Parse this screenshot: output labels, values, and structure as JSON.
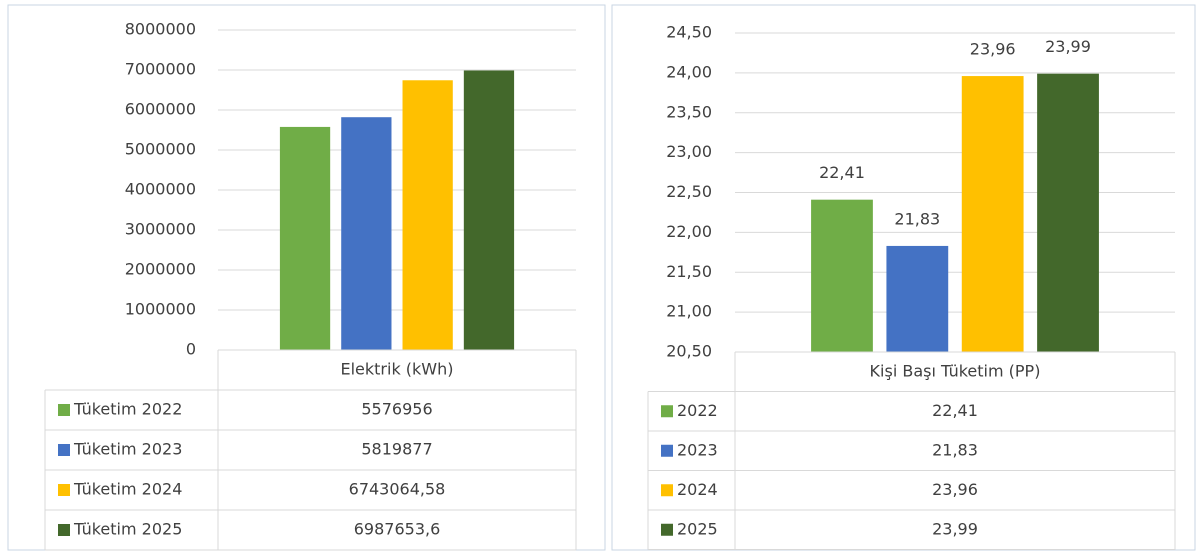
{
  "chart_data": [
    {
      "type": "bar",
      "categories": [
        "Elektrik (kWh)"
      ],
      "series": [
        {
          "name": "Tüketim 2022",
          "color": "#70ad47",
          "values": [
            5576956
          ],
          "value_labels": [
            "5576956"
          ]
        },
        {
          "name": "Tüketim 2023",
          "color": "#4472c4",
          "values": [
            5819877
          ],
          "value_labels": [
            "5819877"
          ]
        },
        {
          "name": "Tüketim 2024",
          "color": "#ffc000",
          "values": [
            6743064.58
          ],
          "value_labels": [
            "6743064,58"
          ]
        },
        {
          "name": "Tüketim 2025",
          "color": "#43682b",
          "values": [
            6987653.6
          ],
          "value_labels": [
            "6987653,6"
          ]
        }
      ],
      "ylim": [
        0,
        8000000
      ],
      "yticks": [
        0,
        1000000,
        2000000,
        3000000,
        4000000,
        5000000,
        6000000,
        7000000,
        8000000
      ],
      "grid": true,
      "data_labels": false,
      "data_table": true
    },
    {
      "type": "bar",
      "categories": [
        "Kişi Başı Tüketim (PP)"
      ],
      "series": [
        {
          "name": "2022",
          "color": "#70ad47",
          "values": [
            22.41
          ],
          "value_labels": [
            "22,41"
          ]
        },
        {
          "name": "2023",
          "color": "#4472c4",
          "values": [
            21.83
          ],
          "value_labels": [
            "21,83"
          ]
        },
        {
          "name": "2024",
          "color": "#ffc000",
          "values": [
            23.96
          ],
          "value_labels": [
            "23,96"
          ]
        },
        {
          "name": "2025",
          "color": "#43682b",
          "values": [
            23.99
          ],
          "value_labels": [
            "23,99"
          ]
        }
      ],
      "ylim": [
        20.5,
        24.5
      ],
      "yticks": [
        {
          "value": 20.5,
          "label": "20,50"
        },
        {
          "value": 21,
          "label": "21,00"
        },
        {
          "value": 21.5,
          "label": "21,50"
        },
        {
          "value": 22,
          "label": "22,00"
        },
        {
          "value": 22.5,
          "label": "22,50"
        },
        {
          "value": 23,
          "label": "23,00"
        },
        {
          "value": 23.5,
          "label": "23,50"
        },
        {
          "value": 24,
          "label": "24,00"
        },
        {
          "value": 24.5,
          "label": "24,50"
        }
      ],
      "grid": true,
      "data_labels": true,
      "data_table": true
    }
  ]
}
